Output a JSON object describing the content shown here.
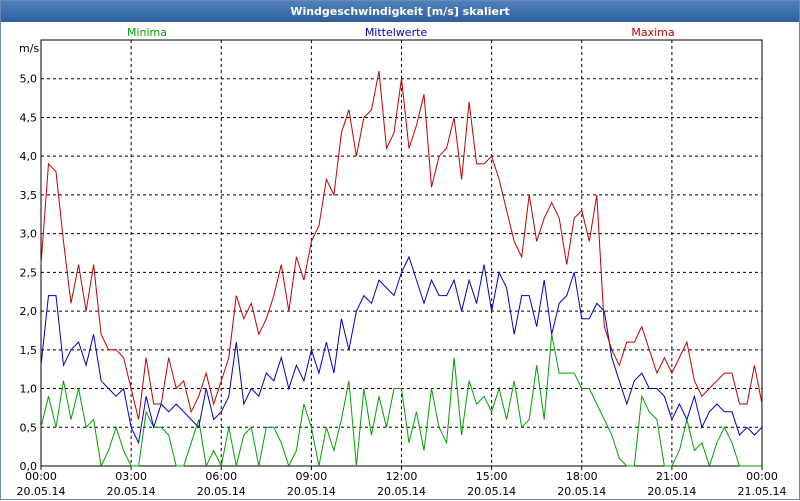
{
  "window": {
    "title": "Windgeschwindigkeit [m/s] skaliert"
  },
  "chart_data": {
    "type": "line",
    "title": "Windgeschwindigkeit [m/s] skaliert",
    "ylabel": "m/s",
    "xlabel": "",
    "ylim": [
      0,
      5.5
    ],
    "yticks": [
      "0,0",
      "0,5",
      "1,0",
      "1,5",
      "2,0",
      "2,5",
      "3,0",
      "3,5",
      "4,0",
      "4,5",
      "5,0"
    ],
    "xticks": [
      {
        "time": "00:00",
        "date": "20.05.14"
      },
      {
        "time": "03:00",
        "date": "20.05.14"
      },
      {
        "time": "06:00",
        "date": "20.05.14"
      },
      {
        "time": "09:00",
        "date": "20.05.14"
      },
      {
        "time": "12:00",
        "date": "20.05.14"
      },
      {
        "time": "15:00",
        "date": "20.05.14"
      },
      {
        "time": "18:00",
        "date": "20.05.14"
      },
      {
        "time": "21:00",
        "date": "20.05.14"
      },
      {
        "time": "00:00",
        "date": "21.05.14"
      }
    ],
    "grid": true,
    "legend_position": "top",
    "x_hours": [
      0,
      0.25,
      0.5,
      0.75,
      1,
      1.25,
      1.5,
      1.75,
      2,
      2.25,
      2.5,
      2.75,
      3,
      3.25,
      3.5,
      3.75,
      4,
      4.25,
      4.5,
      4.75,
      5,
      5.25,
      5.5,
      5.75,
      6,
      6.25,
      6.5,
      6.75,
      7,
      7.25,
      7.5,
      7.75,
      8,
      8.25,
      8.5,
      8.75,
      9,
      9.25,
      9.5,
      9.75,
      10,
      10.25,
      10.5,
      10.75,
      11,
      11.25,
      11.5,
      11.75,
      12,
      12.25,
      12.5,
      12.75,
      13,
      13.25,
      13.5,
      13.75,
      14,
      14.25,
      14.5,
      14.75,
      15,
      15.25,
      15.5,
      15.75,
      16,
      16.25,
      16.5,
      16.75,
      17,
      17.25,
      17.5,
      17.75,
      18,
      18.25,
      18.5,
      18.75,
      19,
      19.25,
      19.5,
      19.75,
      20,
      20.25,
      20.5,
      20.75,
      21,
      21.25,
      21.5,
      21.75,
      22,
      22.25,
      22.5,
      22.75,
      23,
      23.25,
      23.5,
      23.75,
      24
    ],
    "series": [
      {
        "name": "Minima",
        "color": "#00a000",
        "values": [
          0.5,
          0.9,
          0.5,
          1.1,
          0.6,
          1.0,
          0.5,
          0.6,
          0.0,
          0.2,
          0.5,
          0.2,
          0.0,
          0.0,
          0.7,
          0.5,
          0.5,
          0.4,
          0.0,
          0.0,
          0.3,
          0.6,
          0.0,
          0.2,
          0.0,
          0.5,
          0.0,
          0.4,
          0.5,
          0.0,
          0.5,
          0.5,
          0.3,
          0.0,
          0.2,
          0.8,
          0.5,
          0.0,
          0.5,
          0.2,
          0.6,
          1.1,
          0.0,
          1.0,
          0.4,
          0.9,
          0.5,
          1.0,
          1.0,
          0.3,
          0.7,
          0.2,
          1.0,
          0.5,
          0.3,
          1.4,
          0.4,
          1.1,
          0.8,
          0.9,
          0.7,
          1.0,
          0.6,
          1.1,
          0.5,
          0.6,
          1.3,
          0.6,
          1.7,
          1.2,
          1.2,
          1.2,
          1.0,
          1.0,
          0.8,
          0.6,
          0.4,
          0.1,
          0.0,
          0.0,
          0.9,
          0.7,
          0.6,
          0.0,
          0.0,
          0.2,
          0.6,
          0.2,
          0.3,
          0.0,
          0.3,
          0.5,
          0.3,
          0.0,
          0.0,
          0.0,
          0.0
        ]
      },
      {
        "name": "Mittelwerte",
        "color": "#0000c0",
        "values": [
          1.3,
          2.2,
          2.2,
          1.3,
          1.5,
          1.6,
          1.3,
          1.7,
          1.1,
          1.0,
          0.9,
          1.0,
          0.5,
          0.3,
          0.9,
          0.5,
          0.8,
          0.7,
          0.8,
          0.7,
          0.6,
          0.5,
          1.0,
          0.6,
          0.7,
          0.9,
          1.6,
          0.8,
          1.0,
          0.9,
          1.2,
          1.1,
          1.4,
          1.0,
          1.3,
          1.1,
          1.5,
          1.2,
          1.6,
          1.2,
          1.9,
          1.5,
          2.0,
          2.2,
          2.1,
          2.4,
          2.3,
          2.2,
          2.5,
          2.7,
          2.4,
          2.1,
          2.4,
          2.2,
          2.2,
          2.4,
          2.0,
          2.4,
          2.1,
          2.6,
          2.0,
          2.5,
          2.3,
          1.7,
          2.2,
          2.2,
          1.8,
          2.4,
          1.7,
          2.1,
          2.2,
          2.5,
          1.9,
          1.9,
          2.1,
          2.0,
          1.4,
          1.1,
          0.8,
          1.1,
          1.2,
          1.0,
          1.0,
          0.9,
          0.6,
          0.8,
          0.6,
          0.9,
          0.5,
          0.7,
          0.8,
          0.7,
          0.7,
          0.4,
          0.5,
          0.4,
          0.5
        ]
      },
      {
        "name": "Maxima",
        "color": "#c00000",
        "values": [
          2.6,
          3.9,
          3.8,
          2.9,
          2.1,
          2.6,
          2.0,
          2.6,
          1.7,
          1.5,
          1.5,
          1.4,
          1.0,
          0.6,
          1.4,
          0.8,
          0.8,
          1.4,
          1.0,
          1.1,
          0.7,
          0.9,
          1.2,
          0.8,
          1.1,
          1.4,
          2.2,
          1.9,
          2.1,
          1.7,
          1.9,
          2.2,
          2.6,
          2.0,
          2.7,
          2.4,
          2.9,
          3.1,
          3.7,
          3.5,
          4.3,
          4.6,
          4.0,
          4.5,
          4.6,
          5.1,
          4.1,
          4.3,
          5.0,
          4.1,
          4.4,
          4.8,
          3.6,
          4.0,
          4.1,
          4.5,
          3.7,
          4.7,
          3.9,
          3.9,
          4.0,
          3.7,
          3.3,
          2.9,
          2.7,
          3.5,
          2.9,
          3.2,
          3.4,
          3.2,
          2.6,
          3.2,
          3.3,
          2.9,
          3.5,
          1.8,
          1.5,
          1.3,
          1.6,
          1.6,
          1.8,
          1.5,
          1.2,
          1.4,
          1.2,
          1.4,
          1.6,
          1.1,
          0.9,
          1.0,
          1.1,
          1.2,
          1.2,
          0.8,
          0.8,
          1.3,
          0.8
        ]
      }
    ]
  }
}
